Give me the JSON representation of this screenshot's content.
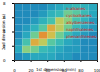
{
  "chart_data": {
    "type": "heatmap",
    "xlabel": "1st dimension (min)",
    "ylabel": "2nd dimension (s)",
    "x_edges": [
      0,
      10,
      20,
      30,
      40,
      50,
      60,
      70,
      80,
      90,
      100
    ],
    "y_edges": [
      0,
      1,
      2,
      3,
      4,
      5,
      6,
      7,
      8
    ],
    "cells": [
      [
        20,
        25,
        30,
        30,
        30,
        25,
        25,
        20,
        20,
        20
      ],
      [
        30,
        60,
        55,
        40,
        35,
        30,
        25,
        25,
        20,
        20
      ],
      [
        25,
        45,
        80,
        70,
        50,
        40,
        30,
        25,
        20,
        20
      ],
      [
        20,
        30,
        55,
        85,
        75,
        55,
        40,
        30,
        25,
        20
      ],
      [
        20,
        25,
        35,
        50,
        80,
        70,
        55,
        40,
        30,
        25
      ],
      [
        20,
        20,
        25,
        35,
        45,
        70,
        60,
        45,
        35,
        25
      ],
      [
        20,
        20,
        20,
        25,
        35,
        40,
        55,
        50,
        40,
        30
      ],
      [
        20,
        20,
        20,
        20,
        25,
        30,
        35,
        40,
        35,
        30
      ]
    ],
    "zlim": [
      0,
      100
    ],
    "xlim": [
      0,
      100
    ],
    "xticks": [
      0,
      20,
      40,
      60,
      80,
      100
    ],
    "ylim": [
      0,
      8
    ],
    "yticks": [
      0,
      2,
      4,
      6,
      8
    ],
    "annotations": [
      {
        "text": "n-alkanes",
        "x": 62,
        "y": 7.3
      },
      {
        "text": "cycloalkanes",
        "x": 62,
        "y": 6.3
      },
      {
        "text": "alkylbenzenes",
        "x": 62,
        "y": 5.3
      },
      {
        "text": "naphthalenes",
        "x": 62,
        "y": 4.3
      },
      {
        "text": "phenanthrenes",
        "x": 62,
        "y": 3.3
      }
    ]
  }
}
